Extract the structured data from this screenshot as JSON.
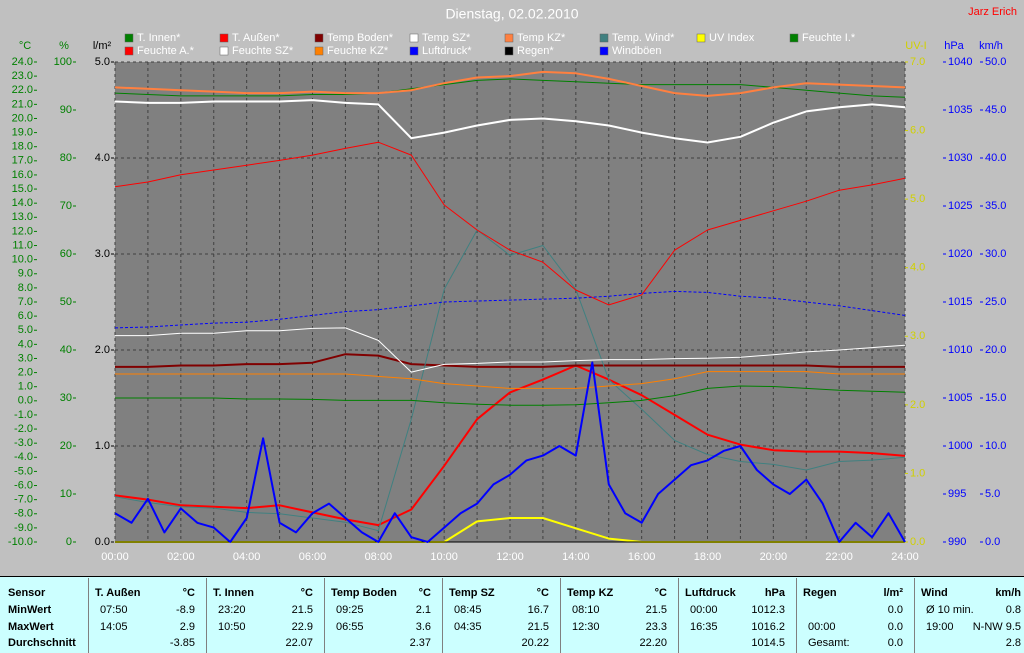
{
  "chart_data": {
    "type": "line",
    "title": "Dienstag, 02.02.2010",
    "author": "Jarz Erich",
    "x": [
      0,
      1,
      2,
      3,
      4,
      5,
      6,
      7,
      8,
      9,
      10,
      11,
      12,
      13,
      14,
      15,
      16,
      17,
      18,
      19,
      20,
      21,
      22,
      23,
      24
    ],
    "xlim": [
      0,
      24
    ],
    "xticks": [
      {
        "value": 0,
        "label": "00:00"
      },
      {
        "value": 2,
        "label": "02:00"
      },
      {
        "value": 4,
        "label": "04:00"
      },
      {
        "value": 6,
        "label": "06:00"
      },
      {
        "value": 8,
        "label": "08:00"
      },
      {
        "value": 10,
        "label": "10:00"
      },
      {
        "value": 12,
        "label": "12:00"
      },
      {
        "value": 14,
        "label": "14:00"
      },
      {
        "value": 16,
        "label": "16:00"
      },
      {
        "value": 18,
        "label": "18:00"
      },
      {
        "value": 20,
        "label": "20:00"
      },
      {
        "value": 22,
        "label": "22:00"
      },
      {
        "value": 24,
        "label": "24:00"
      }
    ],
    "xminor": [
      1,
      3,
      5,
      7,
      9,
      11,
      13,
      15,
      17,
      19,
      21,
      23
    ],
    "grid": true,
    "grid_axis": 2,
    "axes": [
      {
        "label": "°C",
        "side": "left",
        "color": "#008000",
        "lim": [
          -10,
          24
        ],
        "ticks": [
          {
            "value": -10,
            "label": "-10.0"
          },
          {
            "value": -9,
            "label": "-9.0"
          },
          {
            "value": -8,
            "label": "-8.0"
          },
          {
            "value": -7,
            "label": "-7.0"
          },
          {
            "value": -6,
            "label": "-6.0"
          },
          {
            "value": -5,
            "label": "-5.0"
          },
          {
            "value": -4,
            "label": "-4.0"
          },
          {
            "value": -3,
            "label": "-3.0"
          },
          {
            "value": -2,
            "label": "-2.0"
          },
          {
            "value": -1,
            "label": "-1.0"
          },
          {
            "value": 0,
            "label": "0.0"
          },
          {
            "value": 1,
            "label": "1.0"
          },
          {
            "value": 2,
            "label": "2.0"
          },
          {
            "value": 3,
            "label": "3.0"
          },
          {
            "value": 4,
            "label": "4.0"
          },
          {
            "value": 5,
            "label": "5.0"
          },
          {
            "value": 6,
            "label": "6.0"
          },
          {
            "value": 7,
            "label": "7.0"
          },
          {
            "value": 8,
            "label": "8.0"
          },
          {
            "value": 9,
            "label": "9.0"
          },
          {
            "value": 10,
            "label": "10.0"
          },
          {
            "value": 11,
            "label": "11.0"
          },
          {
            "value": 12,
            "label": "12.0"
          },
          {
            "value": 13,
            "label": "13.0"
          },
          {
            "value": 14,
            "label": "14.0"
          },
          {
            "value": 15,
            "label": "15.0"
          },
          {
            "value": 16,
            "label": "16.0"
          },
          {
            "value": 17,
            "label": "17.0"
          },
          {
            "value": 18,
            "label": "18.0"
          },
          {
            "value": 19,
            "label": "19.0"
          },
          {
            "value": 20,
            "label": "20.0"
          },
          {
            "value": 21,
            "label": "21.0"
          },
          {
            "value": 22,
            "label": "22.0"
          },
          {
            "value": 23,
            "label": "23.0"
          },
          {
            "value": 24,
            "label": "24.0"
          }
        ]
      },
      {
        "label": "%",
        "side": "left",
        "color": "#008000",
        "lim": [
          0,
          100
        ],
        "ticks": [
          0,
          10,
          20,
          30,
          40,
          50,
          60,
          70,
          80,
          90,
          100
        ]
      },
      {
        "label": "l/m²",
        "side": "left",
        "color": "#000000",
        "lim": [
          0,
          5
        ],
        "ticks": [
          {
            "value": 0,
            "label": "0.0"
          },
          {
            "value": 1,
            "label": "1.0"
          },
          {
            "value": 2,
            "label": "2.0"
          },
          {
            "value": 3,
            "label": "3.0"
          },
          {
            "value": 4,
            "label": "4.0"
          },
          {
            "value": 5,
            "label": "5.0"
          }
        ]
      },
      {
        "label": "UV-I",
        "side": "right",
        "color": "#d0d000",
        "lim": [
          0,
          7
        ],
        "ticks": [
          {
            "value": 0,
            "label": "0.0"
          },
          {
            "value": 1,
            "label": "1.0"
          },
          {
            "value": 2,
            "label": "2.0"
          },
          {
            "value": 3,
            "label": "3.0"
          },
          {
            "value": 4,
            "label": "4.0"
          },
          {
            "value": 5,
            "label": "5.0"
          },
          {
            "value": 6,
            "label": "6.0"
          },
          {
            "value": 7,
            "label": "7.0"
          }
        ]
      },
      {
        "label": "hPa",
        "side": "right",
        "color": "#0000ff",
        "lim": [
          990,
          1040
        ],
        "ticks": [
          990,
          995,
          1000,
          1005,
          1010,
          1015,
          1020,
          1025,
          1030,
          1035,
          1040
        ]
      },
      {
        "label": "km/h",
        "side": "right",
        "color": "#0000ff",
        "lim": [
          0,
          50
        ],
        "ticks": [
          {
            "value": 0,
            "label": "0.0"
          },
          {
            "value": 5,
            "label": "5.0"
          },
          {
            "value": 10,
            "label": "10.0"
          },
          {
            "value": 15,
            "label": "15.0"
          },
          {
            "value": 20,
            "label": "20.0"
          },
          {
            "value": 25,
            "label": "25.0"
          },
          {
            "value": 30,
            "label": "30.0"
          },
          {
            "value": 35,
            "label": "35.0"
          },
          {
            "value": 40,
            "label": "40.0"
          },
          {
            "value": 45,
            "label": "45.0"
          },
          {
            "value": 50,
            "label": "50.0"
          }
        ]
      }
    ],
    "series": [
      {
        "name": "T. Innen*",
        "color": "#008000",
        "axis": 0,
        "values": [
          21.8,
          21.7,
          21.6,
          21.6,
          21.6,
          21.6,
          21.7,
          21.7,
          21.8,
          22.1,
          22.4,
          22.7,
          22.8,
          22.7,
          22.6,
          22.5,
          22.4,
          22.4,
          22.4,
          22.4,
          22.2,
          22.0,
          21.8,
          21.6,
          21.5
        ]
      },
      {
        "name": "T. Außen*",
        "color": "#ff0000",
        "axis": 0,
        "style": "thick",
        "values": [
          -6.7,
          -7.0,
          -7.4,
          -7.5,
          -7.6,
          -7.4,
          -7.9,
          -8.4,
          -8.8,
          -7.7,
          -4.6,
          -1.3,
          0.6,
          1.5,
          2.5,
          1.5,
          0.4,
          -1.0,
          -2.4,
          -3.1,
          -3.5,
          -3.6,
          -3.6,
          -3.7,
          -3.9
        ]
      },
      {
        "name": "Temp Boden*",
        "color": "#800000",
        "axis": 0,
        "style": "thick",
        "values": [
          2.4,
          2.4,
          2.5,
          2.5,
          2.6,
          2.6,
          2.7,
          3.3,
          3.2,
          2.6,
          2.5,
          2.4,
          2.4,
          2.4,
          2.5,
          2.5,
          2.5,
          2.5,
          2.5,
          2.5,
          2.5,
          2.5,
          2.4,
          2.4,
          2.4
        ]
      },
      {
        "name": "Temp SZ*",
        "color": "#ffffff",
        "axis": 0,
        "style": "thick",
        "values": [
          21.2,
          21.1,
          21.1,
          21.2,
          21.2,
          21.2,
          21.3,
          21.1,
          21.0,
          18.6,
          19.0,
          19.5,
          19.9,
          20.0,
          19.8,
          19.5,
          19.0,
          18.6,
          18.3,
          18.7,
          19.7,
          20.5,
          20.8,
          21.0,
          20.8
        ]
      },
      {
        "name": "Temp KZ*",
        "color": "#ff8040",
        "axis": 0,
        "style": "thick",
        "values": [
          22.2,
          22.1,
          22.0,
          21.9,
          21.8,
          21.8,
          21.9,
          21.8,
          21.8,
          22.0,
          22.5,
          22.9,
          23.0,
          23.3,
          23.2,
          22.8,
          22.3,
          21.8,
          21.6,
          21.8,
          22.2,
          22.5,
          22.4,
          22.3,
          22.2
        ]
      },
      {
        "name": "Temp. Wind*",
        "color": "#408080",
        "axis": 0,
        "values": [
          -6.8,
          -7.2,
          -7.5,
          -7.6,
          -7.9,
          -8.0,
          -8.3,
          -8.6,
          -9.2,
          -1.3,
          7.9,
          12.1,
          10.3,
          11.0,
          7.9,
          1.5,
          -0.6,
          -2.8,
          -3.8,
          -4.3,
          -4.5,
          -4.9,
          -4.3,
          -4.2,
          -4.0
        ]
      },
      {
        "name": "UV Index",
        "color": "#ffff00",
        "axis": 3,
        "style": "thick",
        "values": [
          0,
          0,
          0,
          0,
          0,
          0,
          0,
          0,
          0,
          0,
          0,
          0.3,
          0.35,
          0.35,
          0.2,
          0.05,
          0,
          0,
          0,
          0,
          0,
          0,
          0,
          0,
          0
        ]
      },
      {
        "name": "Feuchte I.*",
        "color": "#008000",
        "axis": 1,
        "values": [
          30,
          30,
          30,
          30,
          29.8,
          29.8,
          29.7,
          29.5,
          29.5,
          29.5,
          29,
          28.7,
          28.5,
          28.5,
          28.6,
          29,
          29.5,
          30.5,
          32,
          32.5,
          32.4,
          32,
          31.6,
          31.4,
          31.2
        ]
      },
      {
        "name": "Feuchte A.*",
        "color": "#ff0000",
        "axis": 1,
        "values": [
          74,
          75,
          76.5,
          77.5,
          78.5,
          79.5,
          80.6,
          82,
          83.3,
          80.6,
          70.2,
          65,
          60.8,
          58.3,
          52.5,
          49.4,
          51.5,
          60.8,
          65,
          67,
          69,
          71,
          73.3,
          74.4,
          75.8
        ]
      },
      {
        "name": "Feuchte SZ*",
        "color": "#ffffff",
        "axis": 1,
        "values": [
          43,
          43,
          43.5,
          43.5,
          44,
          44,
          44.5,
          44.6,
          42,
          35.4,
          37,
          37.2,
          37.5,
          37.5,
          37.8,
          38,
          38,
          38.2,
          38.3,
          38.5,
          39,
          39.6,
          40,
          40.5,
          41
        ]
      },
      {
        "name": "Feuchte KZ*",
        "color": "#ff8000",
        "axis": 1,
        "values": [
          35,
          35,
          35,
          35,
          35,
          35,
          35,
          35,
          34.5,
          34,
          33,
          32.5,
          32,
          32,
          32,
          32.5,
          33,
          34,
          35.5,
          35.5,
          35.5,
          35.5,
          35,
          35,
          35
        ]
      },
      {
        "name": "Luftdruck*",
        "color": "#0000ff",
        "axis": 4,
        "style": "dashed",
        "values": [
          1012.3,
          1012.4,
          1012.6,
          1012.8,
          1012.9,
          1013.2,
          1013.6,
          1014.0,
          1014.2,
          1014.6,
          1015.0,
          1015.1,
          1015.2,
          1015.3,
          1015.4,
          1015.6,
          1015.9,
          1016.1,
          1016.0,
          1015.6,
          1015.4,
          1015.0,
          1014.6,
          1014.1,
          1013.6
        ]
      },
      {
        "name": "Regen*",
        "color": "#000000",
        "axis": 2,
        "values": [
          0,
          0,
          0,
          0,
          0,
          0,
          0,
          0,
          0,
          0,
          0,
          0,
          0,
          0,
          0,
          0,
          0,
          0,
          0,
          0,
          0,
          0,
          0,
          0,
          0
        ]
      },
      {
        "name": "Windböen",
        "color": "#0000ff",
        "axis": 5,
        "style": "thick",
        "x": [
          0,
          0.5,
          1,
          1.5,
          2,
          2.5,
          3,
          3.5,
          4,
          4.5,
          5,
          5.5,
          6,
          6.5,
          7,
          7.5,
          8,
          8.5,
          9,
          9.5,
          10,
          10.5,
          11,
          11.5,
          12,
          12.5,
          13,
          13.5,
          14,
          14.5,
          15,
          15.5,
          16,
          16.5,
          17,
          17.5,
          18,
          18.5,
          19,
          19.5,
          20,
          20.5,
          21,
          21.5,
          22,
          22.5,
          23,
          23.5,
          24
        ],
        "values": [
          3.0,
          2.0,
          4.5,
          1.0,
          3.5,
          2.0,
          1.5,
          0,
          2.5,
          10.8,
          2.0,
          1.0,
          3.0,
          4.0,
          2.5,
          1.0,
          0,
          3.0,
          0.5,
          0,
          1.5,
          3.0,
          4.0,
          6.0,
          7.0,
          8.5,
          9.0,
          10.0,
          9.0,
          18.7,
          6.0,
          3.0,
          2.0,
          5.0,
          6.5,
          8.0,
          8.5,
          9.5,
          10.0,
          7.5,
          6.0,
          5.0,
          6.5,
          4.0,
          0,
          2.0,
          0.5,
          3.0,
          0
        ]
      }
    ]
  },
  "stats": {
    "header": "Sensor",
    "row_labels": [
      "MinWert",
      "MaxWert",
      "Durchschnitt"
    ],
    "columns": [
      {
        "name": "T. Außen",
        "unit": "°C",
        "rows": [
          [
            "07:50",
            "-8.9"
          ],
          [
            "14:05",
            "2.9"
          ],
          [
            "-3.85"
          ]
        ]
      },
      {
        "name": "T. Innen",
        "unit": "°C",
        "rows": [
          [
            "23:20",
            "21.5"
          ],
          [
            "10:50",
            "22.9"
          ],
          [
            "22.07"
          ]
        ]
      },
      {
        "name": "Temp Boden",
        "unit": "°C",
        "rows": [
          [
            "09:25",
            "2.1"
          ],
          [
            "06:55",
            "3.6"
          ],
          [
            "2.37"
          ]
        ]
      },
      {
        "name": "Temp SZ",
        "unit": "°C",
        "rows": [
          [
            "08:45",
            "16.7"
          ],
          [
            "04:35",
            "21.5"
          ],
          [
            "20.22"
          ]
        ]
      },
      {
        "name": "Temp KZ",
        "unit": "°C",
        "rows": [
          [
            "08:10",
            "21.5"
          ],
          [
            "12:30",
            "23.3"
          ],
          [
            "22.20"
          ]
        ]
      },
      {
        "name": "Luftdruck",
        "unit": "hPa",
        "rows": [
          [
            "00:00",
            "1012.3"
          ],
          [
            "16:35",
            "1016.2"
          ],
          [
            "1014.5"
          ]
        ]
      },
      {
        "name": "Regen",
        "unit": "l/m²",
        "rows": [
          [
            "0.0"
          ],
          [
            "00:00",
            "0.0"
          ],
          [
            "Gesamt:",
            "0.0"
          ]
        ]
      },
      {
        "name": "Wind",
        "unit": "km/h",
        "rows": [
          [
            "Ø 10 min.",
            "0.8"
          ],
          [
            "19:00",
            "N-NW 9.5"
          ],
          [
            "2.8"
          ]
        ]
      }
    ]
  }
}
